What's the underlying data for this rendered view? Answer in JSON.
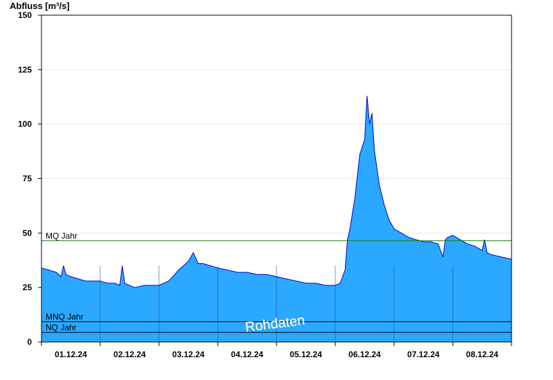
{
  "chart_data": {
    "type": "area",
    "ylabel": "Abfluss [m³/s]",
    "ylim": [
      0,
      150
    ],
    "yticks": [
      0,
      25,
      50,
      75,
      100,
      125,
      150
    ],
    "xlim": [
      "2024-12-01T00:00",
      "2024-12-09T00:00"
    ],
    "xtick_labels": [
      "01.12.24",
      "02.12.24",
      "03.12.24",
      "04.12.24",
      "05.12.24",
      "06.12.24",
      "07.12.24",
      "08.12.24"
    ],
    "grid": true,
    "watermark": "Rohdaten",
    "reference_lines": [
      {
        "label": "MQ Jahr",
        "value": 46.5,
        "color": "#1a7a1a"
      },
      {
        "label": "MNQ Jahr",
        "value": 9.3,
        "color": "#000000"
      },
      {
        "label": "NQ Jahr",
        "value": 4.4,
        "color": "#000000"
      }
    ],
    "area_color": "#2ba8ff",
    "line_color": "#0000cc",
    "series": [
      {
        "x": [
          "2024-12-01T00:00",
          "2024-12-01T03:00",
          "2024-12-01T06:00",
          "2024-12-01T08:00",
          "2024-12-01T09:00",
          "2024-12-01T10:00",
          "2024-12-01T12:00",
          "2024-12-01T15:00",
          "2024-12-01T18:00",
          "2024-12-01T21:00",
          "2024-12-02T00:00",
          "2024-12-02T03:00",
          "2024-12-02T06:00",
          "2024-12-02T08:00",
          "2024-12-02T09:00",
          "2024-12-02T10:00",
          "2024-12-02T14:00",
          "2024-12-02T18:00",
          "2024-12-02T22:00",
          "2024-12-03T00:00",
          "2024-12-03T04:00",
          "2024-12-03T08:00",
          "2024-12-03T12:00",
          "2024-12-03T14:00",
          "2024-12-03T16:00",
          "2024-12-03T18:00",
          "2024-12-03T21:00",
          "2024-12-04T00:00",
          "2024-12-04T04:00",
          "2024-12-04T08:00",
          "2024-12-04T12:00",
          "2024-12-04T16:00",
          "2024-12-04T20:00",
          "2024-12-05T00:00",
          "2024-12-05T04:00",
          "2024-12-05T08:00",
          "2024-12-05T12:00",
          "2024-12-05T16:00",
          "2024-12-05T20:00",
          "2024-12-05T22:00",
          "2024-12-06T00:00",
          "2024-12-06T02:00",
          "2024-12-06T04:00",
          "2024-12-06T05:00",
          "2024-12-06T06:00",
          "2024-12-06T08:00",
          "2024-12-06T10:00",
          "2024-12-06T12:00",
          "2024-12-06T13:00",
          "2024-12-06T14:00",
          "2024-12-06T15:00",
          "2024-12-06T16:00",
          "2024-12-06T17:00",
          "2024-12-06T18:00",
          "2024-12-06T20:00",
          "2024-12-06T22:00",
          "2024-12-07T00:00",
          "2024-12-07T03:00",
          "2024-12-07T06:00",
          "2024-12-07T09:00",
          "2024-12-07T12:00",
          "2024-12-07T15:00",
          "2024-12-07T18:00",
          "2024-12-07T20:00",
          "2024-12-07T21:00",
          "2024-12-07T22:00",
          "2024-12-08T00:00",
          "2024-12-08T03:00",
          "2024-12-08T06:00",
          "2024-12-08T09:00",
          "2024-12-08T12:00",
          "2024-12-08T13:00",
          "2024-12-08T14:00",
          "2024-12-08T16:00",
          "2024-12-08T20:00",
          "2024-12-09T00:00"
        ],
        "y": [
          34,
          33,
          32,
          30,
          35,
          31,
          30,
          29,
          28,
          28,
          28,
          27,
          27,
          26,
          35,
          27,
          25,
          26,
          26,
          26,
          28,
          33,
          37,
          41,
          36,
          36,
          35,
          34,
          33,
          32,
          32,
          31,
          31,
          30,
          29,
          28,
          27,
          27,
          26,
          26,
          26,
          27,
          33,
          47,
          52,
          66,
          86,
          93,
          113,
          100,
          105,
          88,
          80,
          72,
          63,
          56,
          52,
          50,
          48,
          47,
          46,
          46,
          45,
          39,
          47,
          48,
          49,
          47,
          45,
          44,
          42,
          47,
          41,
          40,
          39,
          38
        ]
      }
    ]
  }
}
